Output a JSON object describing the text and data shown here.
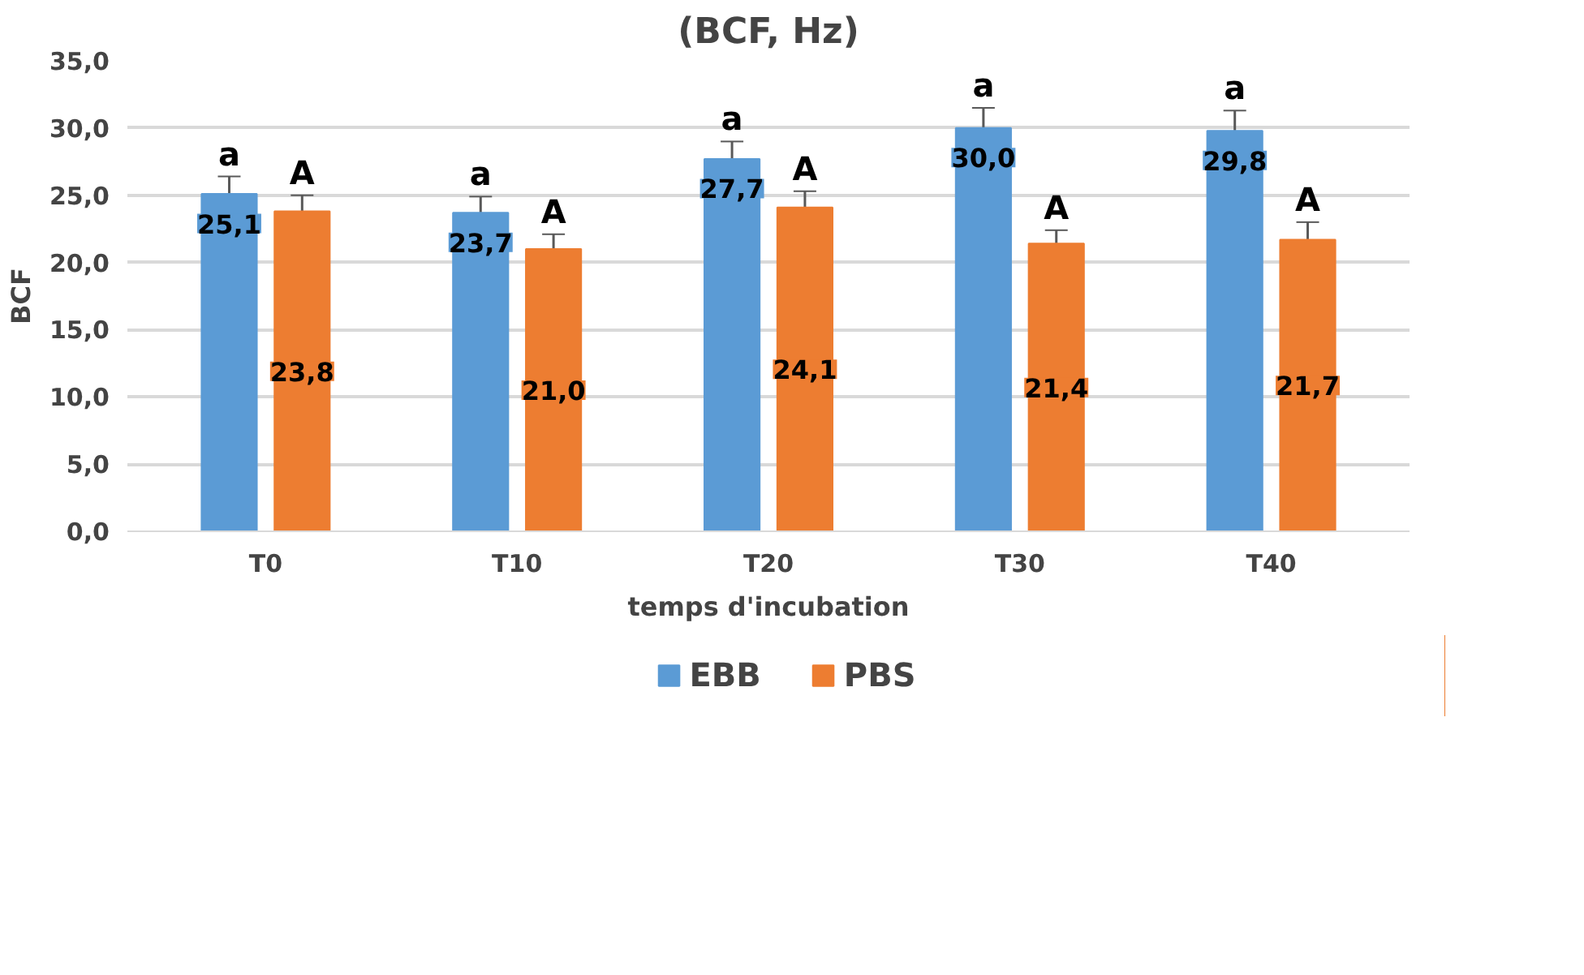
{
  "chart_data": {
    "type": "bar",
    "title": "(BCF, Hz)",
    "xlabel": "temps d'incubation",
    "ylabel": "BCF",
    "categories": [
      "T0",
      "T10",
      "T20",
      "T30",
      "T40"
    ],
    "series": [
      {
        "name": "EBB",
        "color": "#5b9bd5",
        "values": [
          25.1,
          23.7,
          27.7,
          30.0,
          29.8
        ],
        "errors": [
          1.3,
          1.2,
          1.3,
          1.5,
          1.5
        ],
        "value_labels": [
          "25,1",
          "23,7",
          "27,7",
          "30,0",
          "29,8"
        ]
      },
      {
        "name": "PBS",
        "color": "#ed7d31",
        "values": [
          23.8,
          21.0,
          24.1,
          21.4,
          21.7
        ],
        "errors": [
          1.2,
          1.1,
          1.2,
          1.0,
          1.3
        ],
        "value_labels": [
          "23,8",
          "21,0",
          "24,1",
          "21,4",
          "21,7"
        ]
      }
    ],
    "ylim": [
      0,
      35
    ],
    "yticks": [
      {
        "value": 0,
        "label": "0,0"
      },
      {
        "value": 5,
        "label": "5,0"
      },
      {
        "value": 10,
        "label": "10,0"
      },
      {
        "value": 15,
        "label": "15,0"
      },
      {
        "value": 20,
        "label": "20,0"
      },
      {
        "value": 25,
        "label": "25,0"
      },
      {
        "value": 30,
        "label": "30,0"
      },
      {
        "value": 35,
        "label": "35,0"
      }
    ],
    "grid": "y",
    "legend": "bottom",
    "annotations": [
      "a",
      "A",
      "a",
      "A",
      "a",
      "A",
      "a",
      "A",
      "a",
      "A"
    ]
  }
}
